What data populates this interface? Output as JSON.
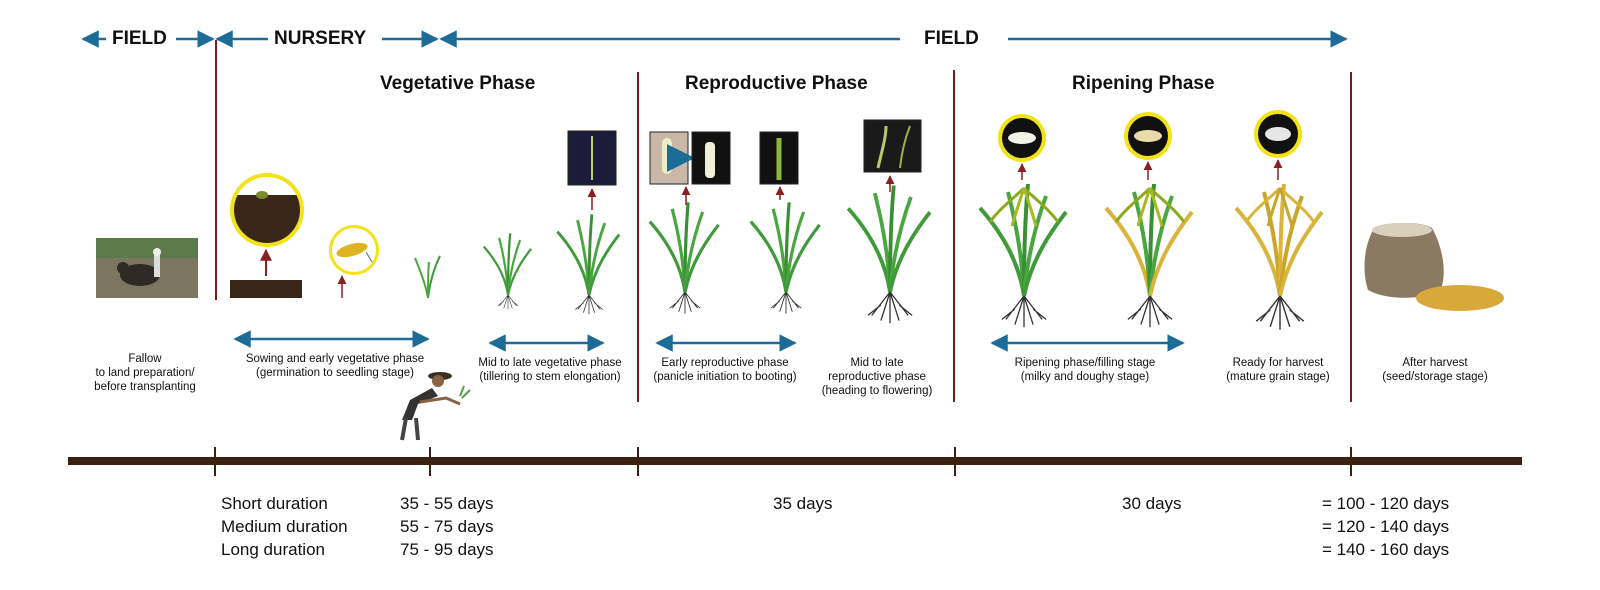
{
  "top_bar": {
    "field_left": "FIELD",
    "nursery": "NURSERY",
    "field_main": "FIELD"
  },
  "phases": {
    "vegetative": "Vegetative Phase",
    "reproductive": "Reproductive Phase",
    "ripening": "Ripening Phase"
  },
  "stages": [
    {
      "line1": "Fallow",
      "line2": "to land preparation/",
      "line3": "before transplanting"
    },
    {
      "line1": "Sowing and early vegetative phase",
      "line2": "(germination to seedling stage)"
    },
    {
      "line1": "Mid to late vegetative phase",
      "line2": "(tillering to stem elongation)"
    },
    {
      "line1": "Early reproductive phase",
      "line2": "(panicle initiation to booting)"
    },
    {
      "line1": "Mid to late",
      "line2": "reproductive phase",
      "line3": "(heading to flowering)"
    },
    {
      "line1": "Ripening phase/filling stage",
      "line2": "(milky and doughy stage)"
    },
    {
      "line1": "Ready for harvest",
      "line2": "(mature grain stage)"
    },
    {
      "line1": "After harvest",
      "line2": "(seed/storage stage)"
    }
  ],
  "durations": {
    "types": [
      "Short duration",
      "Medium duration",
      "Long duration"
    ],
    "vegetative": [
      "35 - 55 days",
      "55 - 75 days",
      "75 - 95 days"
    ],
    "reproductive": "35 days",
    "ripening": "30 days",
    "total": [
      "= 100 - 120 days",
      "= 120 - 140 days",
      "= 140 - 160 days"
    ]
  },
  "colors": {
    "arrow_blue": "#1b6d97",
    "divider_red": "#7a1c1c",
    "timeline_brown": "#3b1f10",
    "plant_green": "#3f9a3a",
    "ripe_yellow": "#d9b43a",
    "highlight_yellow": "#f2e21a"
  }
}
